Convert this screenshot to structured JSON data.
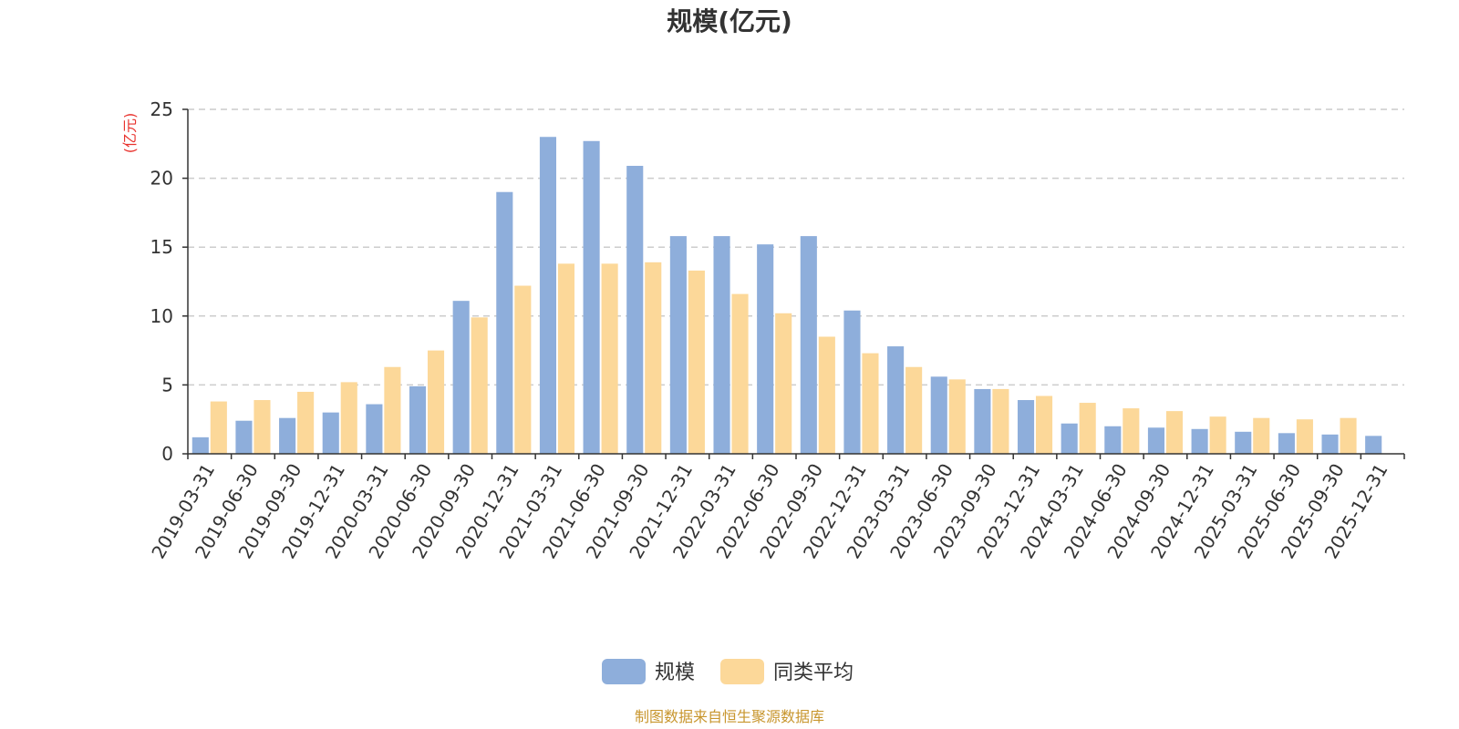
{
  "chart_data": {
    "type": "bar",
    "title": "规模(亿元)",
    "ylabel": "(亿元)",
    "xlabel": "",
    "ylim": [
      0,
      25
    ],
    "yticks": [
      0,
      5,
      10,
      15,
      20,
      25
    ],
    "grid": true,
    "legend_position": "bottom-center",
    "categories": [
      "2019-03-31",
      "2019-06-30",
      "2019-09-30",
      "2019-12-31",
      "2020-03-31",
      "2020-06-30",
      "2020-09-30",
      "2020-12-31",
      "2021-03-31",
      "2021-06-30",
      "2021-09-30",
      "2021-12-31",
      "2022-03-31",
      "2022-06-30",
      "2022-09-30",
      "2022-12-31",
      "2023-03-31",
      "2023-06-30",
      "2023-09-30",
      "2023-12-31",
      "2024-03-31",
      "2024-06-30",
      "2024-09-30",
      "2024-12-31",
      "2025-03-31",
      "2025-06-30",
      "2025-09-30",
      "2025-12-31"
    ],
    "series": [
      {
        "name": "规模",
        "color": "#8eaedb",
        "values": [
          1.2,
          2.4,
          2.6,
          3.0,
          3.6,
          4.9,
          11.1,
          19.0,
          23.0,
          22.7,
          20.9,
          15.8,
          15.8,
          15.2,
          15.8,
          10.4,
          7.8,
          5.6,
          4.7,
          3.9,
          2.2,
          2.0,
          1.9,
          1.8,
          1.6,
          1.5,
          1.4,
          1.3
        ]
      },
      {
        "name": "同类平均",
        "color": "#fcd899",
        "values": [
          3.8,
          3.9,
          4.5,
          5.2,
          6.3,
          7.5,
          9.9,
          12.2,
          13.8,
          13.8,
          13.9,
          13.3,
          11.6,
          10.2,
          8.5,
          7.3,
          6.3,
          5.4,
          4.7,
          4.2,
          3.7,
          3.3,
          3.1,
          2.7,
          2.6,
          2.5,
          2.6,
          null
        ]
      }
    ]
  },
  "source_note": "制图数据来自恒生聚源数据库"
}
